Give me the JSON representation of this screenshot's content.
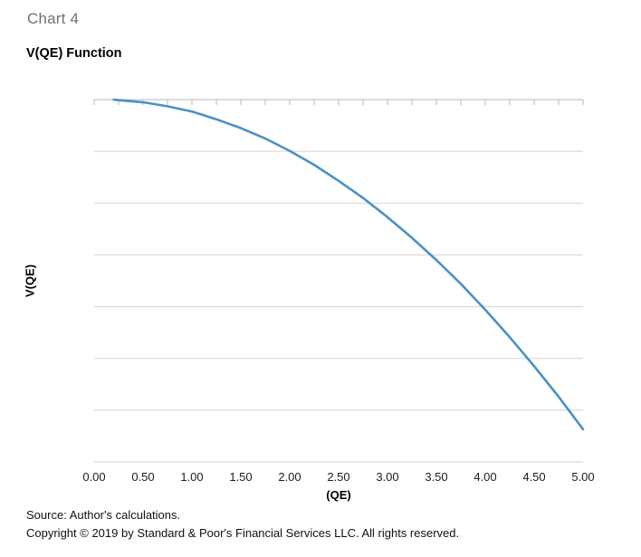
{
  "header": {
    "eyebrow": "Chart 4",
    "title": "V(QE) Function"
  },
  "footer": {
    "source": "Source: Author's calculations.",
    "copyright": "Copyright © 2019 by Standard & Poor's Financial Services LLC. All rights reserved."
  },
  "colors": {
    "series_blue": "#4a91c5",
    "axis_line": "#c6c6c6",
    "gridline": "#d2d2d2",
    "eyebrow_text": "#6f6f79",
    "background": "#ffffff"
  },
  "chart_data": {
    "type": "line",
    "title": "V(QE) Function",
    "xlabel": "(QE)",
    "ylabel": "V(QE)",
    "x_tick_labels": [
      "0.00",
      "0.50",
      "1.00",
      "1.50",
      "2.00",
      "2.50",
      "3.00",
      "3.50",
      "4.00",
      "4.50",
      "5.00"
    ],
    "y_tick_labels": [],
    "xlim": [
      0,
      5
    ],
    "ylim": [
      -7,
      0
    ],
    "y_gridline_step": 1,
    "x_minor_tick_step": 0.25,
    "grid": true,
    "legend": "none",
    "series": [
      {
        "name": "V(QE)",
        "color": "#4a91c5",
        "x": [
          0.2,
          0.25,
          0.5,
          0.75,
          1.0,
          1.25,
          1.5,
          1.75,
          2.0,
          2.25,
          2.5,
          2.75,
          3.0,
          3.25,
          3.5,
          3.75,
          4.0,
          4.25,
          4.5,
          4.75,
          5.0
        ],
        "y": [
          0,
          -0.01,
          -0.05,
          -0.13,
          -0.23,
          -0.38,
          -0.55,
          -0.75,
          -0.99,
          -1.26,
          -1.57,
          -1.9,
          -2.27,
          -2.67,
          -3.1,
          -3.56,
          -4.06,
          -4.59,
          -5.15,
          -5.74,
          -6.37
        ]
      }
    ]
  }
}
